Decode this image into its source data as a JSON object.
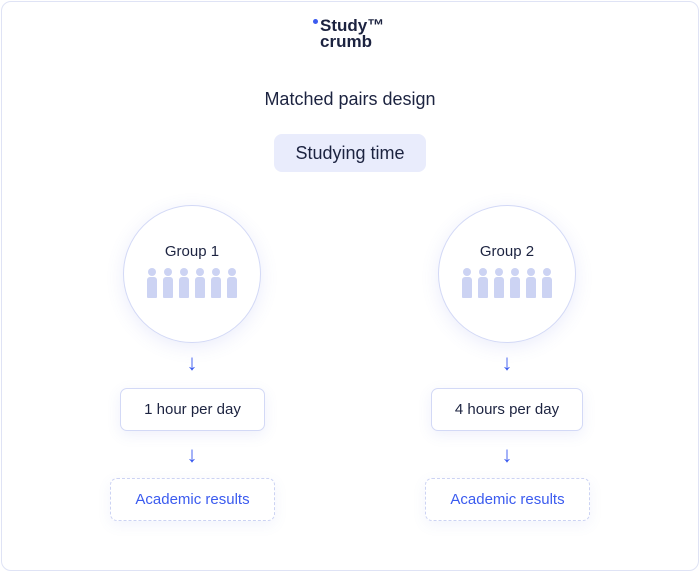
{
  "logo": {
    "line1": "Study™",
    "line2": "crumb",
    "accent": "#3b5bef"
  },
  "title": "Matched pairs design",
  "variable": "Studying time",
  "groups": [
    {
      "label": "Group 1",
      "treatment": "1 hour per day",
      "outcome": "Academic results",
      "people": 6
    },
    {
      "label": "Group 2",
      "treatment": "4 hours per day",
      "outcome": "Academic results",
      "people": 6
    }
  ],
  "arrow": "↓"
}
